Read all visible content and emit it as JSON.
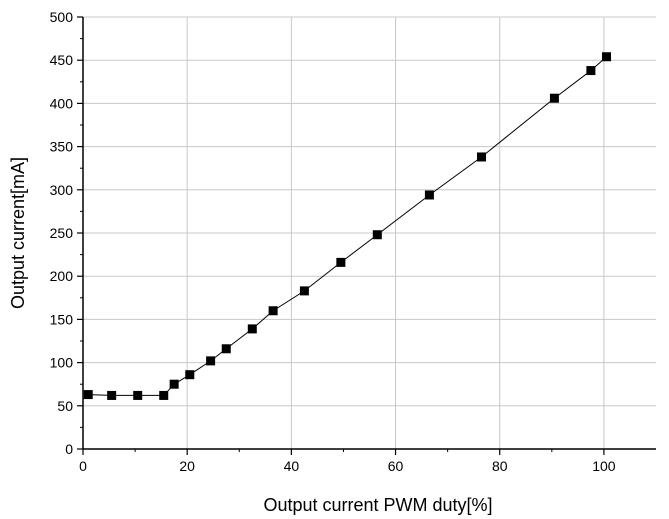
{
  "chart_data": {
    "type": "line",
    "title": "",
    "xlabel": "Output current PWM duty[%]",
    "ylabel": "Output current[mA]",
    "xlim": [
      0,
      110
    ],
    "ylim": [
      0,
      500
    ],
    "x_ticks": [
      0,
      20,
      40,
      60,
      80,
      100
    ],
    "y_ticks": [
      0,
      50,
      100,
      150,
      200,
      250,
      300,
      350,
      400,
      450,
      500
    ],
    "x_tick_labels": [
      "0",
      "20",
      "40",
      "60",
      "80",
      "100"
    ],
    "y_tick_labels": [
      "0",
      "50",
      "100",
      "150",
      "200",
      "250",
      "300",
      "350",
      "400",
      "450",
      "500"
    ],
    "grid": true,
    "legend": "none",
    "series": [
      {
        "marker": "square",
        "color": "#000000",
        "x": [
          1,
          5.5,
          10.5,
          15.5,
          17.5,
          20.5,
          24.5,
          27.5,
          32.5,
          36.5,
          42.5,
          49.5,
          56.5,
          66.5,
          76.5,
          90.5,
          97.5,
          100.5
        ],
        "y": [
          63,
          62,
          62,
          62,
          75,
          86,
          102,
          116,
          139,
          160,
          183,
          216,
          248,
          294,
          338,
          406,
          438,
          454
        ]
      }
    ]
  }
}
